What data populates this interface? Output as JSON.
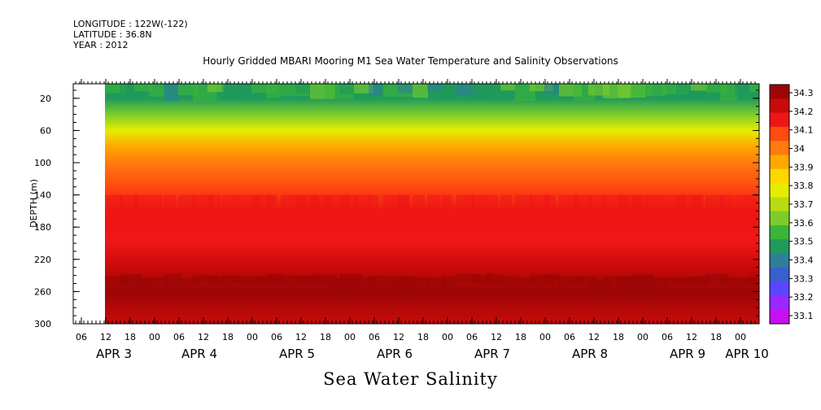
{
  "header": {
    "longitude": "LONGITUDE : 122W(-122)",
    "latitude": "LATITUDE : 36.8N",
    "year": "YEAR : 2012"
  },
  "chart_data": {
    "type": "heatmap",
    "title": "Hourly Gridded MBARI Mooring M1 Sea Water Temperature and Salinity Observations",
    "bottom_title": "Sea Water Salinity",
    "ylabel": "DEPTH (m)",
    "y_ticks": [
      "20",
      "60",
      "100",
      "140",
      "180",
      "220",
      "260",
      "300"
    ],
    "y_tick_values": [
      20,
      60,
      100,
      140,
      180,
      220,
      260,
      300
    ],
    "ylim": [
      300,
      2
    ],
    "x_hour_labels": [
      "06",
      "12",
      "18",
      "00",
      "06",
      "12",
      "18",
      "00",
      "06",
      "12",
      "18",
      "00",
      "06",
      "12",
      "18",
      "00",
      "06",
      "12",
      "18",
      "00",
      "06",
      "12",
      "18",
      "00",
      "06",
      "12",
      "18",
      "00"
    ],
    "x_day_labels": [
      "APR  3",
      "APR  4",
      "APR  5",
      "APR  6",
      "APR  7",
      "APR  8",
      "APR  9",
      "APR 10"
    ],
    "colorbar_levels": [
      "33.1",
      "33.2",
      "33.3",
      "33.4",
      "33.5",
      "33.6",
      "33.7",
      "33.8",
      "33.9",
      "34",
      "34.1",
      "34.2",
      "34.3"
    ],
    "colorbar_colors": [
      "#c80ff0",
      "#9a28ff",
      "#5a46ff",
      "#3a5fcf",
      "#2f7f9a",
      "#1f9a5a",
      "#3ab53a",
      "#7ccd2a",
      "#b8dc10",
      "#e6ec00",
      "#ffd800",
      "#ffa800",
      "#ff7a10",
      "#ff4a10",
      "#ee1616",
      "#c80a0a",
      "#9c0606"
    ],
    "depth_profile_typical": [
      {
        "depth": 10,
        "salinity": 33.45
      },
      {
        "depth": 20,
        "salinity": 33.5
      },
      {
        "depth": 40,
        "salinity": 33.65
      },
      {
        "depth": 60,
        "salinity": 33.8
      },
      {
        "depth": 80,
        "salinity": 33.9
      },
      {
        "depth": 100,
        "salinity": 34.0
      },
      {
        "depth": 130,
        "salinity": 34.1
      },
      {
        "depth": 160,
        "salinity": 34.15
      },
      {
        "depth": 200,
        "salinity": 34.18
      },
      {
        "depth": 230,
        "salinity": 34.22
      },
      {
        "depth": 260,
        "salinity": 34.28
      },
      {
        "depth": 300,
        "salinity": 34.22
      }
    ]
  }
}
